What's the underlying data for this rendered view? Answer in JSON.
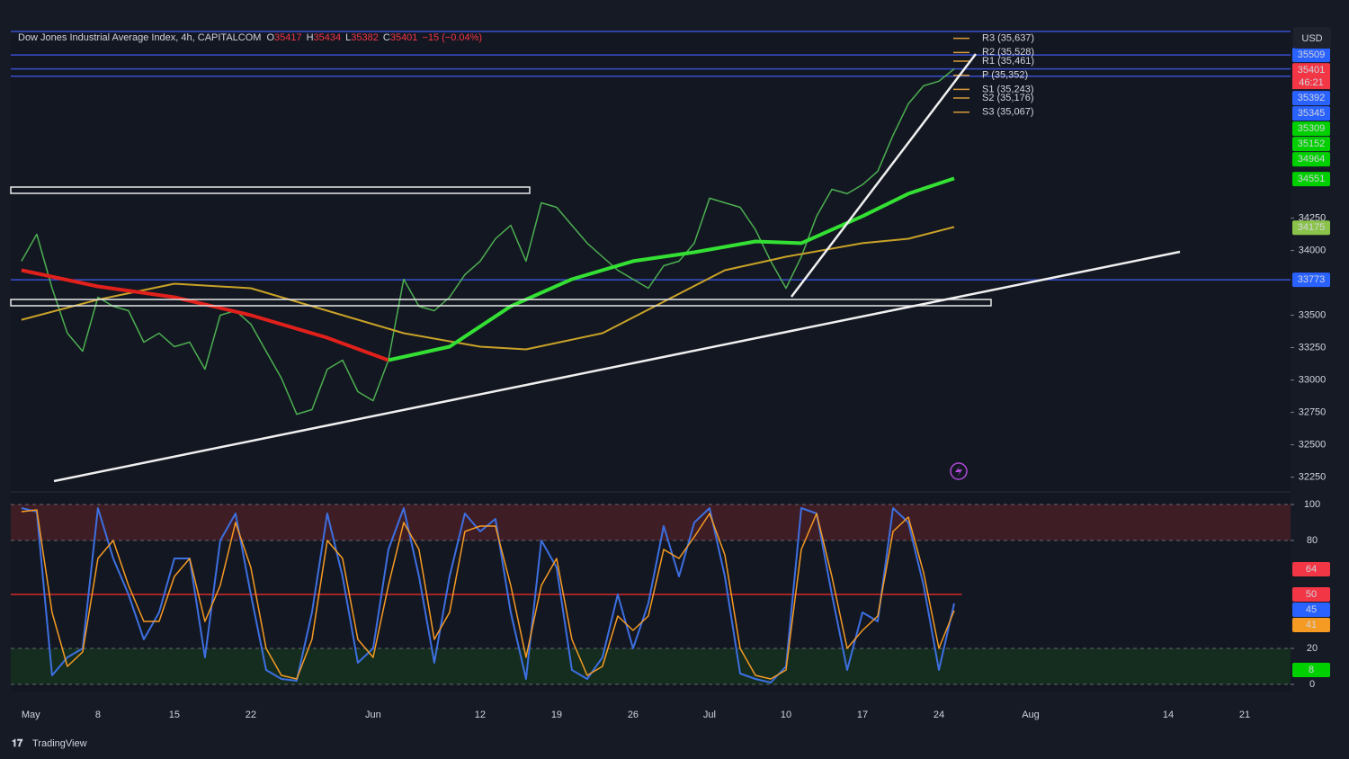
{
  "ui": {
    "currency": "USD",
    "brand": "TradingView"
  },
  "chart_data": [
    {
      "type": "line",
      "title": "Dow Jones Industrial Average Index, 4h, CAPITALCOM",
      "ohlc": [
        {
          "key": "O",
          "value": 35417
        },
        {
          "key": "H",
          "value": 35434
        },
        {
          "key": "L",
          "value": 35382
        },
        {
          "key": "C",
          "value": 35401
        }
      ],
      "change_label": "−15 (−0.04%)",
      "xlim": [
        -0.7,
        83
      ],
      "xticks": [
        {
          "value": 0,
          "label": "May"
        },
        {
          "value": 5,
          "label": "8"
        },
        {
          "value": 10,
          "label": "15"
        },
        {
          "value": 15,
          "label": "22"
        },
        {
          "value": 23,
          "label": "Jun"
        },
        {
          "value": 30,
          "label": "12"
        },
        {
          "value": 35,
          "label": "19"
        },
        {
          "value": 40,
          "label": "26"
        },
        {
          "value": 45,
          "label": "Jul"
        },
        {
          "value": 50,
          "label": "10"
        },
        {
          "value": 55,
          "label": "17"
        },
        {
          "value": 60,
          "label": "24"
        },
        {
          "value": 66,
          "label": "Aug"
        },
        {
          "value": 75,
          "label": "14"
        },
        {
          "value": 80,
          "label": "21"
        }
      ],
      "ylim": [
        32150,
        35690
      ],
      "yticks": [
        32250,
        32500,
        32750,
        33000,
        33250,
        33500,
        34000,
        34250
      ],
      "grid": false,
      "series": [
        {
          "color": "#4caf50",
          "width": 1.5,
          "x": [
            0,
            1,
            2,
            3,
            4,
            5,
            6,
            7,
            8,
            9,
            10,
            11,
            12,
            13,
            14,
            15,
            16,
            17,
            18,
            19,
            20,
            21,
            22,
            23,
            24,
            25,
            26,
            27,
            28,
            29,
            30,
            31,
            32,
            33,
            34,
            35,
            36,
            37,
            38,
            39,
            40,
            41,
            42,
            43,
            44,
            45,
            46,
            47,
            48,
            49,
            50,
            51,
            52,
            53,
            54,
            55,
            56,
            57,
            58,
            59,
            60,
            61
          ],
          "values": [
            33917,
            34125,
            33708,
            33361,
            33222,
            33639,
            33569,
            33535,
            33292,
            33361,
            33257,
            33292,
            33083,
            33500,
            33535,
            33431,
            33222,
            33014,
            32736,
            32771,
            33083,
            33153,
            32910,
            32840,
            33153,
            33778,
            33569,
            33535,
            33639,
            33813,
            33917,
            34090,
            34194,
            33917,
            34368,
            34333,
            34194,
            34056,
            33951,
            33847,
            33778,
            33708,
            33882,
            33917,
            34056,
            34403,
            34368,
            34333,
            34160,
            33917,
            33708,
            33951,
            34264,
            34472,
            34438,
            34507,
            34611,
            34889,
            35132,
            35271,
            35306,
            35401
          ]
        },
        {
          "color": "#c9a227",
          "width": 2,
          "x": [
            0,
            5,
            10,
            15,
            20,
            25,
            30,
            33,
            38,
            42,
            46,
            50,
            55,
            58,
            61
          ],
          "values": [
            33465,
            33620,
            33743,
            33708,
            33535,
            33361,
            33257,
            33236,
            33361,
            33604,
            33847,
            33951,
            34056,
            34090,
            34181
          ]
        },
        {
          "color": "#e0201b",
          "width": 4,
          "x": [
            0,
            5,
            10,
            15,
            20,
            24
          ],
          "values": [
            33847,
            33722,
            33639,
            33500,
            33326,
            33153
          ]
        },
        {
          "color": "#33e033",
          "width": 4,
          "x": [
            24,
            28,
            32,
            36,
            40,
            44,
            48,
            51,
            55,
            58,
            61
          ],
          "values": [
            33153,
            33257,
            33569,
            33778,
            33917,
            33986,
            34069,
            34056,
            34264,
            34438,
            34556
          ]
        }
      ],
      "level_line_color": "#3a4fd0",
      "price_tags": [
        {
          "value": 35509,
          "color": "#2962ff",
          "text_color": "#ffffff",
          "line": true
        },
        {
          "value": 35401,
          "color": "#f23645",
          "text_color": "#ffffff",
          "line": true,
          "countdown": "46:21"
        },
        {
          "value": 35392,
          "color": "#2962ff",
          "text_color": "#ffffff"
        },
        {
          "value": 35345,
          "color": "#2962ff",
          "text_color": "#ffffff",
          "line": true
        },
        {
          "value": 35309,
          "color": "#00d000",
          "text_color": "#000000"
        },
        {
          "value": 35152,
          "color": "#00d000",
          "text_color": "#000000"
        },
        {
          "value": 34964,
          "color": "#00d000",
          "text_color": "#000000"
        },
        {
          "value": 34551,
          "color": "#00d000",
          "text_color": "#000000"
        },
        {
          "value": 34175,
          "color": "#8bc34a",
          "text_color": "#000000"
        },
        {
          "value": 33773,
          "color": "#2962ff",
          "text_color": "#ffffff",
          "line": true
        }
      ],
      "pivots": [
        {
          "label": "R3 (35,637)",
          "value": 35637
        },
        {
          "label": "R2 (35,528)",
          "value": 35528
        },
        {
          "label": "R1 (35,461)",
          "value": 35461
        },
        {
          "label": "P (35,352)",
          "value": 35352
        },
        {
          "label": "S1 (35,243)",
          "value": 35243
        },
        {
          "label": "S2 (35,176)",
          "value": 35176
        },
        {
          "label": "S3 (35,067)",
          "value": 35067
        }
      ],
      "pivot_color": "#d89a3a"
    },
    {
      "type": "line",
      "xlim": [
        -0.7,
        83
      ],
      "ylim": [
        -4.5,
        105.5
      ],
      "yticks": [
        0,
        20,
        80,
        100
      ],
      "grid": true,
      "bands": [
        {
          "from": 80,
          "to": 100,
          "color": "#4a1f27"
        },
        {
          "from": 0,
          "to": 20,
          "color": "#16331f"
        }
      ],
      "mid_line": 50,
      "mid_line_color": "#d42a2a",
      "x": [
        0,
        1,
        2,
        3,
        4,
        5,
        6,
        7,
        8,
        9,
        10,
        11,
        12,
        13,
        14,
        15,
        16,
        17,
        18,
        19,
        20,
        21,
        22,
        23,
        24,
        25,
        26,
        27,
        28,
        29,
        30,
        31,
        32,
        33,
        34,
        35,
        36,
        37,
        38,
        39,
        40,
        41,
        42,
        43,
        44,
        45,
        46,
        47,
        48,
        49,
        50,
        51,
        52,
        53,
        54,
        55,
        56,
        57,
        58,
        59,
        60,
        61
      ],
      "series": [
        {
          "color": "#3d6fe0",
          "width": 2,
          "values": [
            98,
            96,
            5,
            15,
            20,
            98,
            70,
            50,
            25,
            40,
            70,
            70,
            15,
            80,
            95,
            50,
            8,
            3,
            2,
            40,
            95,
            60,
            12,
            20,
            75,
            98,
            60,
            12,
            60,
            95,
            85,
            92,
            40,
            3,
            80,
            65,
            8,
            3,
            15,
            50,
            20,
            45,
            88,
            60,
            90,
            98,
            60,
            6,
            3,
            1,
            10,
            98,
            95,
            50,
            8,
            40,
            35,
            98,
            90,
            55,
            8,
            45
          ]
        },
        {
          "color": "#f59a23",
          "width": 1.5,
          "values": [
            96,
            97,
            40,
            10,
            18,
            70,
            80,
            55,
            35,
            35,
            60,
            70,
            35,
            55,
            90,
            65,
            20,
            5,
            3,
            25,
            80,
            70,
            25,
            15,
            55,
            90,
            75,
            25,
            40,
            85,
            88,
            88,
            55,
            15,
            55,
            70,
            25,
            5,
            10,
            38,
            30,
            38,
            75,
            70,
            82,
            95,
            72,
            20,
            5,
            3,
            8,
            75,
            95,
            60,
            20,
            30,
            38,
            85,
            93,
            62,
            20,
            41
          ]
        }
      ],
      "price_tags": [
        {
          "value": 64,
          "color": "#f23645",
          "text_color": "#ffffff"
        },
        {
          "value": 50,
          "color": "#f23645",
          "text_color": "#ffffff"
        },
        {
          "value": 45,
          "color": "#2962ff",
          "text_color": "#ffffff"
        },
        {
          "value": 41,
          "color": "#f59a23",
          "text_color": "#000000"
        },
        {
          "value": 8,
          "color": "#00d000",
          "text_color": "#000000"
        }
      ]
    }
  ]
}
